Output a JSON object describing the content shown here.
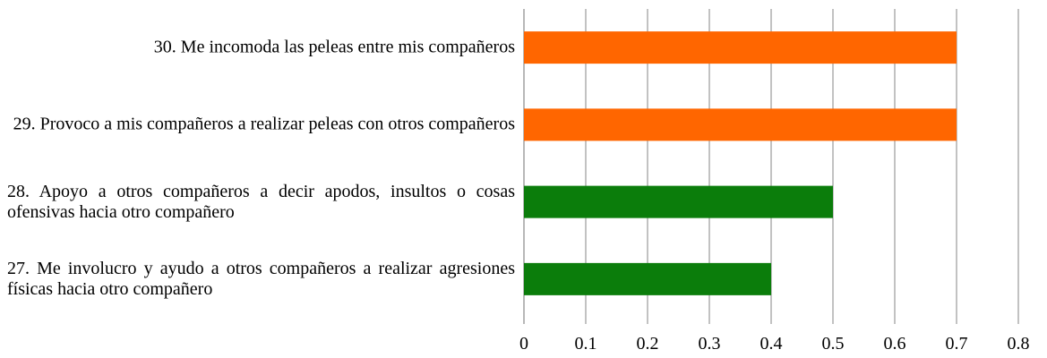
{
  "chart_data": {
    "type": "bar",
    "orientation": "horizontal",
    "categories": [
      "27. Me involucro y ayudo a otros compañeros a realizar agresiones físicas hacia otro compañero",
      "28. Apoyo a otros compañeros a decir apodos, insultos o cosas ofensivas hacia otro compañero",
      "29. Provoco a mis compañeros a realizar peleas con otros compañeros",
      "30. Me incomoda las peleas entre mis compañeros"
    ],
    "values": [
      0.4,
      0.5,
      0.7,
      0.7
    ],
    "colors": [
      "#0b7d0b",
      "#0b7d0b",
      "#ff6600",
      "#ff6600"
    ],
    "xlim": [
      0,
      0.8
    ],
    "xticks": [
      0,
      0.1,
      0.2,
      0.3,
      0.4,
      0.5,
      0.6,
      0.7,
      0.8
    ],
    "grid": true
  }
}
